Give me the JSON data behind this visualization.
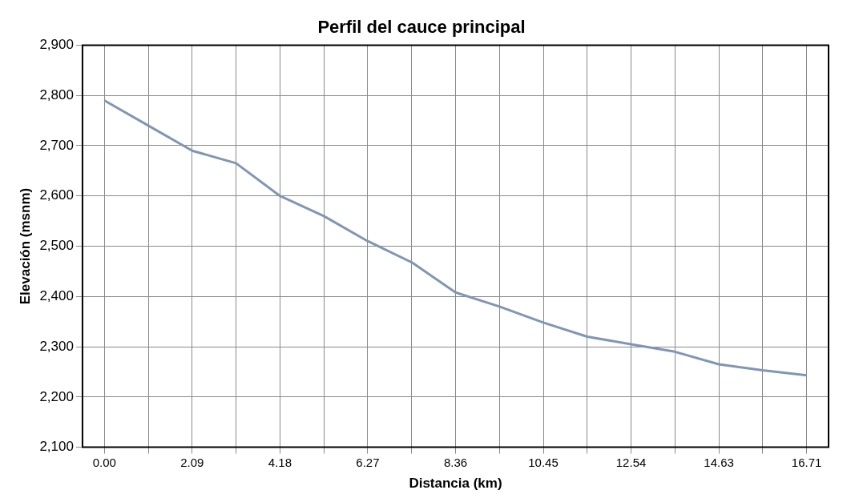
{
  "chart_data": {
    "type": "line",
    "title": "Perfil del cauce principal",
    "xlabel": "Distancia (km)",
    "ylabel": "Elevación (msnm)",
    "categories": [
      "0.00",
      null,
      "2.09",
      null,
      "4.18",
      null,
      "6.27",
      null,
      "8.36",
      null,
      "10.45",
      null,
      "12.54",
      null,
      "14.63",
      null,
      "16.71"
    ],
    "series": [
      {
        "color": "#8096b4",
        "values": [
          2790,
          2740,
          2690,
          2665,
          2600,
          2560,
          2510,
          2468,
          2408,
          2380,
          2348,
          2320,
          2305,
          2290,
          2265,
          2253,
          2243
        ]
      }
    ],
    "ylim": [
      2100,
      2900
    ],
    "yticks": [
      {
        "value": 2100,
        "label": "2,100"
      },
      {
        "value": 2200,
        "label": "2,200"
      },
      {
        "value": 2300,
        "label": "2,300"
      },
      {
        "value": 2400,
        "label": "2,400"
      },
      {
        "value": 2500,
        "label": "2,500"
      },
      {
        "value": 2600,
        "label": "2,600"
      },
      {
        "value": 2700,
        "label": "2,700"
      },
      {
        "value": 2800,
        "label": "2,800"
      },
      {
        "value": 2900,
        "label": "2,900"
      }
    ],
    "grid": true,
    "legend": false,
    "marker": "none",
    "line_style": "solid"
  }
}
